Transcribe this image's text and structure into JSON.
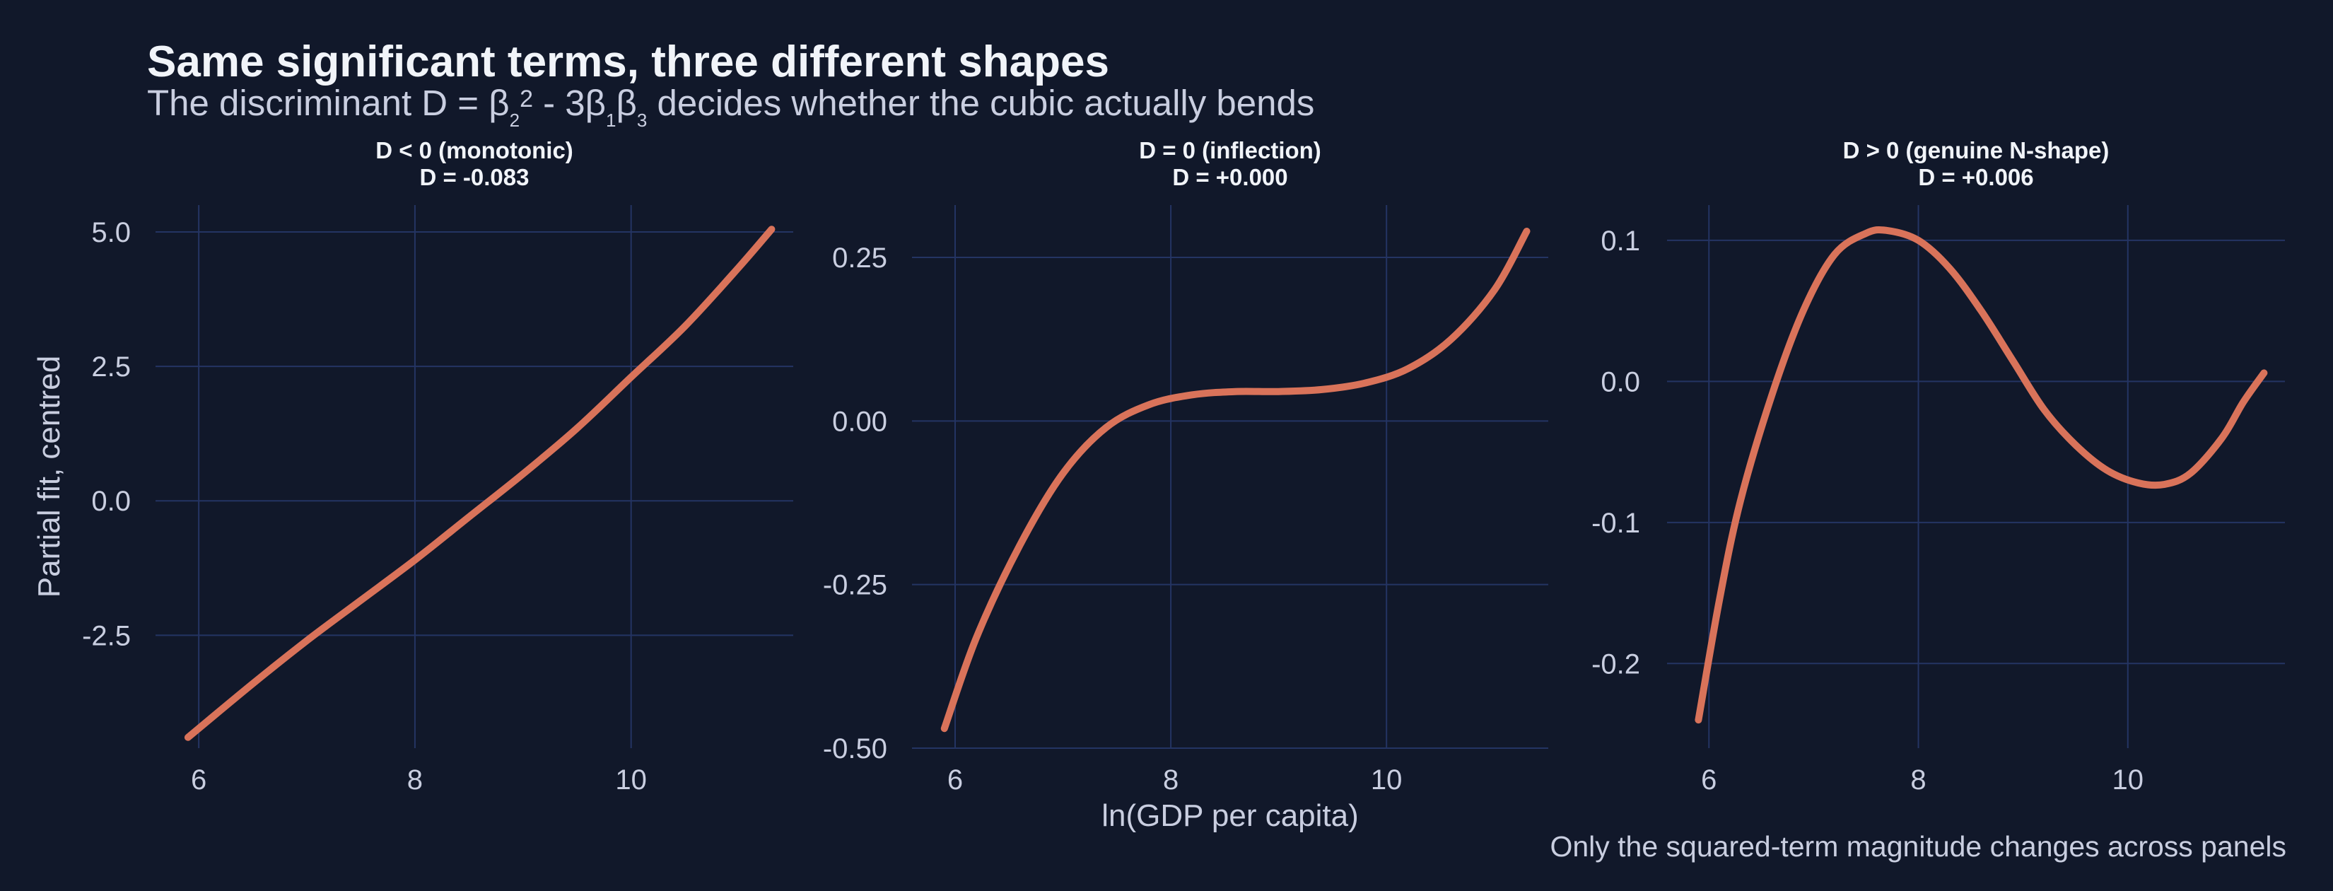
{
  "header": {
    "title": "Same significant terms, three different shapes",
    "subtitle_prefix": "The discriminant D = β",
    "subtitle_sub1": "2",
    "subtitle_sup": "2",
    "subtitle_mid": " - 3β",
    "subtitle_sub2": "1",
    "subtitle_mid2": "β",
    "subtitle_sub3": "3",
    "subtitle_suffix": " decides whether the cubic actually bends"
  },
  "caption": "Only the squared-term magnitude changes across panels",
  "colors": {
    "background": "#11182a",
    "grid": "#243463",
    "line": "#d9735a"
  },
  "chart_data": [
    {
      "type": "line",
      "title": "D < 0  (monotonic)",
      "subtitle": "D = -0.083",
      "ylabel": "Partial fit, centred",
      "xlabel": "",
      "xlim": [
        5.6,
        11.5
      ],
      "ylim": [
        -4.6,
        5.5
      ],
      "xticks": [
        6,
        8,
        10
      ],
      "xtick_labels": [
        "6",
        "8",
        "10"
      ],
      "yticks": [
        5.0,
        2.5,
        0.0,
        -2.5
      ],
      "ytick_labels": [
        "5.0",
        "2.5",
        "0.0",
        "-2.5"
      ],
      "grid": true,
      "x": [
        5.9,
        6.5,
        7.0,
        7.5,
        8.0,
        8.5,
        9.0,
        9.5,
        10.0,
        10.5,
        11.0,
        11.3
      ],
      "y": [
        -4.4,
        -3.4,
        -2.6,
        -1.85,
        -1.1,
        -0.3,
        0.5,
        1.35,
        2.3,
        3.25,
        4.35,
        5.05
      ]
    },
    {
      "type": "line",
      "title": "D = 0  (inflection)",
      "subtitle": "D = +0.000",
      "ylabel": "",
      "xlabel": "ln(GDP per capita)",
      "xlim": [
        5.6,
        11.5
      ],
      "ylim": [
        -0.5,
        0.33
      ],
      "xticks": [
        6,
        8,
        10
      ],
      "xtick_labels": [
        "6",
        "8",
        "10"
      ],
      "yticks": [
        0.25,
        0.0,
        -0.25,
        -0.5
      ],
      "ytick_labels": [
        "0.25",
        "0.00",
        "-0.25",
        "-0.50"
      ],
      "grid": true,
      "x": [
        5.9,
        6.2,
        6.6,
        7.0,
        7.4,
        7.8,
        8.2,
        8.6,
        9.0,
        9.4,
        9.8,
        10.2,
        10.6,
        11.0,
        11.3
      ],
      "y": [
        -0.47,
        -0.33,
        -0.19,
        -0.08,
        -0.01,
        0.025,
        0.04,
        0.045,
        0.045,
        0.048,
        0.058,
        0.08,
        0.125,
        0.2,
        0.29
      ]
    },
    {
      "type": "line",
      "title": "D > 0  (genuine N-shape)",
      "subtitle": "D = +0.006",
      "ylabel": "",
      "xlabel": "",
      "xlim": [
        5.6,
        11.5
      ],
      "ylim": [
        -0.26,
        0.125
      ],
      "xticks": [
        6,
        8,
        10
      ],
      "xtick_labels": [
        "6",
        "8",
        "10"
      ],
      "yticks": [
        0.1,
        0.0,
        -0.1,
        -0.2
      ],
      "ytick_labels": [
        "0.1",
        "0.0",
        "-0.1",
        "-0.2"
      ],
      "grid": true,
      "x": [
        5.9,
        6.1,
        6.3,
        6.6,
        6.9,
        7.2,
        7.5,
        7.7,
        8.0,
        8.3,
        8.6,
        8.9,
        9.2,
        9.5,
        9.8,
        10.1,
        10.35,
        10.6,
        10.9,
        11.1,
        11.3
      ],
      "y": [
        -0.24,
        -0.155,
        -0.085,
        -0.01,
        0.05,
        0.09,
        0.105,
        0.107,
        0.1,
        0.08,
        0.05,
        0.015,
        -0.02,
        -0.045,
        -0.063,
        -0.072,
        -0.073,
        -0.065,
        -0.04,
        -0.015,
        0.006
      ]
    }
  ]
}
